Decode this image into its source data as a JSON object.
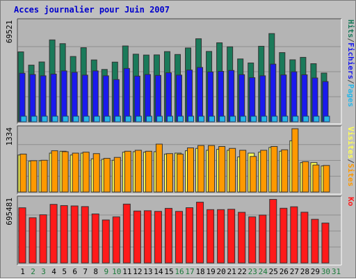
{
  "chart_data": {
    "type": "bar",
    "title": "Acces journalier pour Juin 2007",
    "categories": [
      "1",
      "2",
      "3",
      "4",
      "5",
      "6",
      "7",
      "8",
      "9",
      "10",
      "11",
      "12",
      "13",
      "14",
      "15",
      "16",
      "17",
      "18",
      "19",
      "20",
      "21",
      "22",
      "23",
      "24",
      "25",
      "26",
      "27",
      "28",
      "29",
      "30",
      "31"
    ],
    "weekend_days": [
      "2",
      "3",
      "9",
      "10",
      "16",
      "17",
      "23",
      "24",
      "30",
      "31"
    ],
    "colors": {
      "title": "#0000cc",
      "hits": "#1a7a5a",
      "fichiers": "#1a1aee",
      "pages": "#27b6e8",
      "visites": "#ffff55",
      "sites": "#ff9900",
      "ko": "#ff1a1a",
      "weekend_label": "#1a7a3a",
      "background": "#c0c0c0",
      "panel": "#b4b4b4"
    },
    "panels": [
      {
        "key": "hits_panel",
        "ymax_label": "69521",
        "ymax": 69521,
        "right_labels": [
          {
            "text": "Pages",
            "color": "#27b6e8"
          },
          {
            "text": "/",
            "color": "#444444"
          },
          {
            "text": "Fichiers",
            "color": "#1a1aee"
          },
          {
            "text": "/",
            "color": "#444444"
          },
          {
            "text": "Hits",
            "color": "#1a7a5a"
          }
        ],
        "series": [
          {
            "name": "Hits",
            "color": "#1a7a5a",
            "values": [
              48500,
              39300,
              41500,
              56800,
              54200,
              45300,
              51400,
              42900,
              36300,
              41400,
              52600,
              46900,
              46300,
              46400,
              48700,
              46700,
              51200,
              57600,
              48800,
              54800,
              52000,
              43600,
              40800,
              52400,
              61200,
              48000,
              43000,
              44700,
              40300,
              33800,
              0
            ]
          },
          {
            "name": "Fichiers",
            "color": "#1a1aee",
            "values": [
              33700,
              32800,
              31900,
              33100,
              35300,
              34300,
              32400,
              35300,
              31900,
              29300,
              37000,
              31700,
              32800,
              32200,
              34000,
              32400,
              35900,
              37700,
              34600,
              35000,
              35600,
              32700,
              30600,
              31900,
              40000,
              32500,
              34700,
              32600,
              30400,
              27900,
              0
            ]
          },
          {
            "name": "Pages",
            "color": "#27b6e8",
            "values": [
              3500,
              3200,
              3300,
              3700,
              3300,
              3500,
              3100,
              3500,
              3000,
              3000,
              3500,
              3300,
              3300,
              3400,
              3600,
              3100,
              3400,
              3500,
              3400,
              3300,
              3300,
              3100,
              3000,
              3200,
              3700,
              3300,
              3300,
              3200,
              3000,
              2700,
              0
            ]
          }
        ]
      },
      {
        "key": "visits_panel",
        "ymax_label": "1334",
        "ymax": 1334,
        "right_labels": [
          {
            "text": "Sites",
            "color": "#ff9900"
          },
          {
            "text": "/",
            "color": "#444444"
          },
          {
            "text": "Visites",
            "color": "#ffff55"
          }
        ],
        "series": [
          {
            "name": "Visites",
            "color": "#ffff55",
            "values": [
              780,
              650,
              660,
              820,
              860,
              780,
              820,
              700,
              690,
              670,
              840,
              850,
              840,
              850,
              800,
              820,
              870,
              920,
              880,
              900,
              880,
              740,
              820,
              840,
              940,
              860,
              1080,
              620,
              620,
              550,
              0
            ]
          },
          {
            "name": "Sites",
            "color": "#ff9900",
            "values": [
              800,
              660,
              670,
              870,
              850,
              820,
              840,
              810,
              710,
              730,
              860,
              880,
              860,
              1010,
              810,
              800,
              930,
              980,
              980,
              960,
              920,
              880,
              750,
              880,
              960,
              890,
              1334,
              640,
              570,
              560,
              0
            ]
          }
        ]
      },
      {
        "key": "ko_panel",
        "ymax_label": "695481",
        "ymax": 695481,
        "right_labels": [
          {
            "text": "Ko",
            "color": "#ff1a1a"
          }
        ],
        "series": [
          {
            "name": "Ko",
            "color": "#ff1a1a",
            "values": [
              600000,
              492000,
              524000,
              637000,
              624000,
              620000,
              613000,
              533000,
              468000,
              501000,
              640000,
              565000,
              568000,
              561000,
              594000,
              561000,
              601000,
              661000,
              580000,
              580000,
              584000,
              551000,
              501000,
              521000,
              691000,
              595000,
              611000,
              552000,
              475000,
              434000,
              0
            ]
          }
        ]
      }
    ]
  }
}
